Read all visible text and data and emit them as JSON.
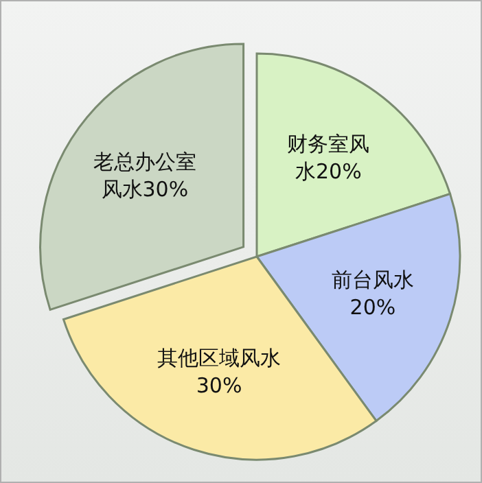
{
  "chart_data": {
    "type": "pie",
    "categories": [
      "财务室风水",
      "前台风水",
      "其他区域风水",
      "老总办公室风水"
    ],
    "values": [
      20,
      20,
      30,
      30
    ],
    "value_labels": [
      "20%",
      "20%",
      "30%",
      "30%"
    ],
    "colors": [
      "#d8f2c4",
      "#bccbf6",
      "#fbeaa6",
      "#cbd7c4"
    ]
  }
}
